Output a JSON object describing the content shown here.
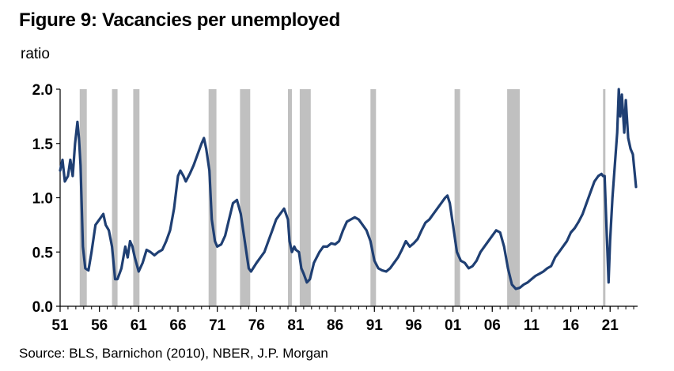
{
  "chart_data": {
    "type": "line",
    "title": "Figure 9: Vacancies per unemployed",
    "ylabel": "ratio",
    "xlabel": "",
    "source": "Source: BLS, Barnichon (2010), NBER, J.P. Morgan",
    "ylim": [
      0.0,
      2.0
    ],
    "xlim": [
      1951.0,
      2024.5
    ],
    "yticks": [
      0.0,
      0.5,
      1.0,
      1.5,
      2.0
    ],
    "ytick_labels": [
      "0.0",
      "0.5",
      "1.0",
      "1.5",
      "2.0"
    ],
    "xticks": [
      1951,
      1956,
      1961,
      1966,
      1971,
      1976,
      1981,
      1986,
      1991,
      1996,
      2001,
      2006,
      2011,
      2016,
      2021
    ],
    "xtick_labels": [
      "51",
      "56",
      "61",
      "66",
      "71",
      "76",
      "81",
      "86",
      "91",
      "96",
      "01",
      "06",
      "11",
      "16",
      "21"
    ],
    "grid": false,
    "legend": "none",
    "colors": {
      "line": "#1f3f73",
      "recession": "#c0c0c0"
    },
    "recessions": [
      [
        1953.5,
        1954.4
      ],
      [
        1957.6,
        1958.3
      ],
      [
        1960.3,
        1961.1
      ],
      [
        1969.9,
        1970.9
      ],
      [
        1973.9,
        1975.2
      ],
      [
        1980.0,
        1980.5
      ],
      [
        1981.5,
        1982.9
      ],
      [
        1990.5,
        1991.2
      ],
      [
        2001.2,
        2001.9
      ],
      [
        2007.9,
        2009.5
      ],
      [
        2020.1,
        2020.4
      ]
    ],
    "series": [
      {
        "x": [
          1951.0,
          1951.3,
          1951.6,
          1952.0,
          1952.3,
          1952.6,
          1952.9,
          1953.2,
          1953.4,
          1953.6,
          1953.9,
          1954.2,
          1954.6,
          1955.0,
          1955.5,
          1956.0,
          1956.5,
          1956.8,
          1957.2,
          1957.6,
          1958.0,
          1958.3,
          1958.8,
          1959.3,
          1959.6,
          1959.9,
          1960.2,
          1960.5,
          1961.0,
          1961.5,
          1962.0,
          1962.5,
          1963.0,
          1963.5,
          1964.0,
          1964.5,
          1965.0,
          1965.5,
          1966.0,
          1966.3,
          1966.7,
          1967.0,
          1967.5,
          1968.0,
          1968.5,
          1969.0,
          1969.3,
          1969.6,
          1970.0,
          1970.3,
          1970.7,
          1971.0,
          1971.5,
          1972.0,
          1972.5,
          1973.0,
          1973.5,
          1974.0,
          1974.5,
          1975.0,
          1975.3,
          1976.0,
          1976.5,
          1977.0,
          1977.5,
          1978.0,
          1978.5,
          1979.0,
          1979.5,
          1980.0,
          1980.2,
          1980.5,
          1980.8,
          1981.0,
          1981.4,
          1981.7,
          1982.0,
          1982.4,
          1982.8,
          1983.3,
          1984.0,
          1984.5,
          1985.0,
          1985.5,
          1986.0,
          1986.5,
          1987.0,
          1987.5,
          1988.0,
          1988.5,
          1989.0,
          1989.5,
          1990.0,
          1990.5,
          1991.0,
          1991.5,
          1992.0,
          1992.5,
          1993.0,
          1993.5,
          1994.0,
          1994.5,
          1995.0,
          1995.5,
          1996.0,
          1996.5,
          1997.0,
          1997.5,
          1998.0,
          1998.5,
          1999.0,
          1999.5,
          2000.0,
          2000.3,
          2000.6,
          2001.0,
          2001.5,
          2002.0,
          2002.5,
          2003.0,
          2003.5,
          2004.0,
          2004.5,
          2005.0,
          2005.5,
          2006.0,
          2006.5,
          2007.0,
          2007.5,
          2008.0,
          2008.5,
          2009.0,
          2009.5,
          2010.0,
          2010.5,
          2011.0,
          2011.5,
          2012.0,
          2012.5,
          2013.0,
          2013.5,
          2014.0,
          2014.5,
          2015.0,
          2015.5,
          2016.0,
          2016.5,
          2017.0,
          2017.5,
          2018.0,
          2018.5,
          2019.0,
          2019.5,
          2019.9,
          2020.1,
          2020.3,
          2020.5,
          2020.8,
          2021.0,
          2021.3,
          2021.6,
          2021.9,
          2022.1,
          2022.3,
          2022.5,
          2022.8,
          2023.0,
          2023.3,
          2023.6,
          2023.9,
          2024.1,
          2024.3
        ],
        "y": [
          1.25,
          1.35,
          1.15,
          1.2,
          1.35,
          1.2,
          1.5,
          1.7,
          1.55,
          1.3,
          0.55,
          0.35,
          0.33,
          0.5,
          0.75,
          0.8,
          0.85,
          0.75,
          0.7,
          0.55,
          0.25,
          0.25,
          0.35,
          0.55,
          0.45,
          0.6,
          0.55,
          0.45,
          0.32,
          0.4,
          0.52,
          0.5,
          0.47,
          0.5,
          0.52,
          0.6,
          0.7,
          0.9,
          1.2,
          1.25,
          1.2,
          1.15,
          1.22,
          1.3,
          1.4,
          1.5,
          1.55,
          1.45,
          1.25,
          0.8,
          0.6,
          0.55,
          0.57,
          0.65,
          0.8,
          0.95,
          0.98,
          0.85,
          0.6,
          0.35,
          0.32,
          0.4,
          0.45,
          0.5,
          0.6,
          0.7,
          0.8,
          0.85,
          0.9,
          0.8,
          0.6,
          0.5,
          0.55,
          0.52,
          0.5,
          0.35,
          0.3,
          0.22,
          0.25,
          0.4,
          0.5,
          0.55,
          0.55,
          0.58,
          0.57,
          0.6,
          0.7,
          0.78,
          0.8,
          0.82,
          0.8,
          0.75,
          0.7,
          0.6,
          0.42,
          0.35,
          0.33,
          0.32,
          0.35,
          0.4,
          0.45,
          0.52,
          0.6,
          0.55,
          0.58,
          0.62,
          0.7,
          0.77,
          0.8,
          0.85,
          0.9,
          0.95,
          1.0,
          1.02,
          0.95,
          0.75,
          0.5,
          0.42,
          0.4,
          0.35,
          0.37,
          0.42,
          0.5,
          0.55,
          0.6,
          0.65,
          0.7,
          0.68,
          0.55,
          0.35,
          0.2,
          0.16,
          0.17,
          0.2,
          0.22,
          0.25,
          0.28,
          0.3,
          0.32,
          0.35,
          0.37,
          0.45,
          0.5,
          0.55,
          0.6,
          0.68,
          0.72,
          0.78,
          0.85,
          0.95,
          1.05,
          1.15,
          1.2,
          1.22,
          1.2,
          1.2,
          0.8,
          0.22,
          0.6,
          1.0,
          1.3,
          1.6,
          2.0,
          1.75,
          1.95,
          1.6,
          1.9,
          1.55,
          1.45,
          1.4,
          1.25,
          1.1
        ]
      }
    ]
  }
}
